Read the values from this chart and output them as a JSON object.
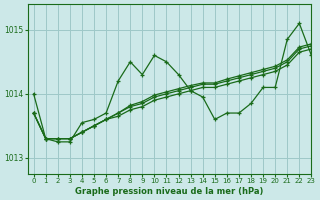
{
  "title": "Graphe pression niveau de la mer (hPa)",
  "background_color": "#cce8e8",
  "grid_color": "#9ec8c8",
  "line_color": "#1a6b1a",
  "xlim": [
    -0.5,
    23
  ],
  "ylim": [
    1012.75,
    1015.4
  ],
  "yticks": [
    1013,
    1014,
    1015
  ],
  "xticks": [
    0,
    1,
    2,
    3,
    4,
    5,
    6,
    7,
    8,
    9,
    10,
    11,
    12,
    13,
    14,
    15,
    16,
    17,
    18,
    19,
    20,
    21,
    22,
    23
  ],
  "series": [
    [
      1014.0,
      1013.3,
      1013.25,
      1013.25,
      1013.55,
      1013.6,
      1013.7,
      1014.2,
      1014.5,
      1014.3,
      1014.6,
      1014.5,
      1014.3,
      1014.05,
      1013.95,
      1013.6,
      1013.7,
      1013.7,
      1013.85,
      1014.1,
      1014.1,
      1014.85,
      1015.1,
      1014.6
    ],
    [
      1013.7,
      1013.3,
      1013.3,
      1013.3,
      1013.4,
      1013.5,
      1013.6,
      1013.65,
      1013.75,
      1013.8,
      1013.9,
      1013.95,
      1014.0,
      1014.05,
      1014.1,
      1014.1,
      1014.15,
      1014.2,
      1014.25,
      1014.3,
      1014.35,
      1014.45,
      1014.65,
      1014.7
    ],
    [
      1013.7,
      1013.3,
      1013.3,
      1013.3,
      1013.4,
      1013.5,
      1013.6,
      1013.7,
      1013.8,
      1013.85,
      1013.95,
      1014.0,
      1014.05,
      1014.1,
      1014.15,
      1014.15,
      1014.2,
      1014.25,
      1014.3,
      1014.35,
      1014.4,
      1014.5,
      1014.7,
      1014.75
    ],
    [
      1013.7,
      1013.3,
      1013.3,
      1013.3,
      1013.4,
      1013.5,
      1013.6,
      1013.7,
      1013.82,
      1013.88,
      1013.98,
      1014.03,
      1014.08,
      1014.13,
      1014.17,
      1014.17,
      1014.23,
      1014.28,
      1014.33,
      1014.38,
      1014.43,
      1014.53,
      1014.73,
      1014.78
    ]
  ]
}
